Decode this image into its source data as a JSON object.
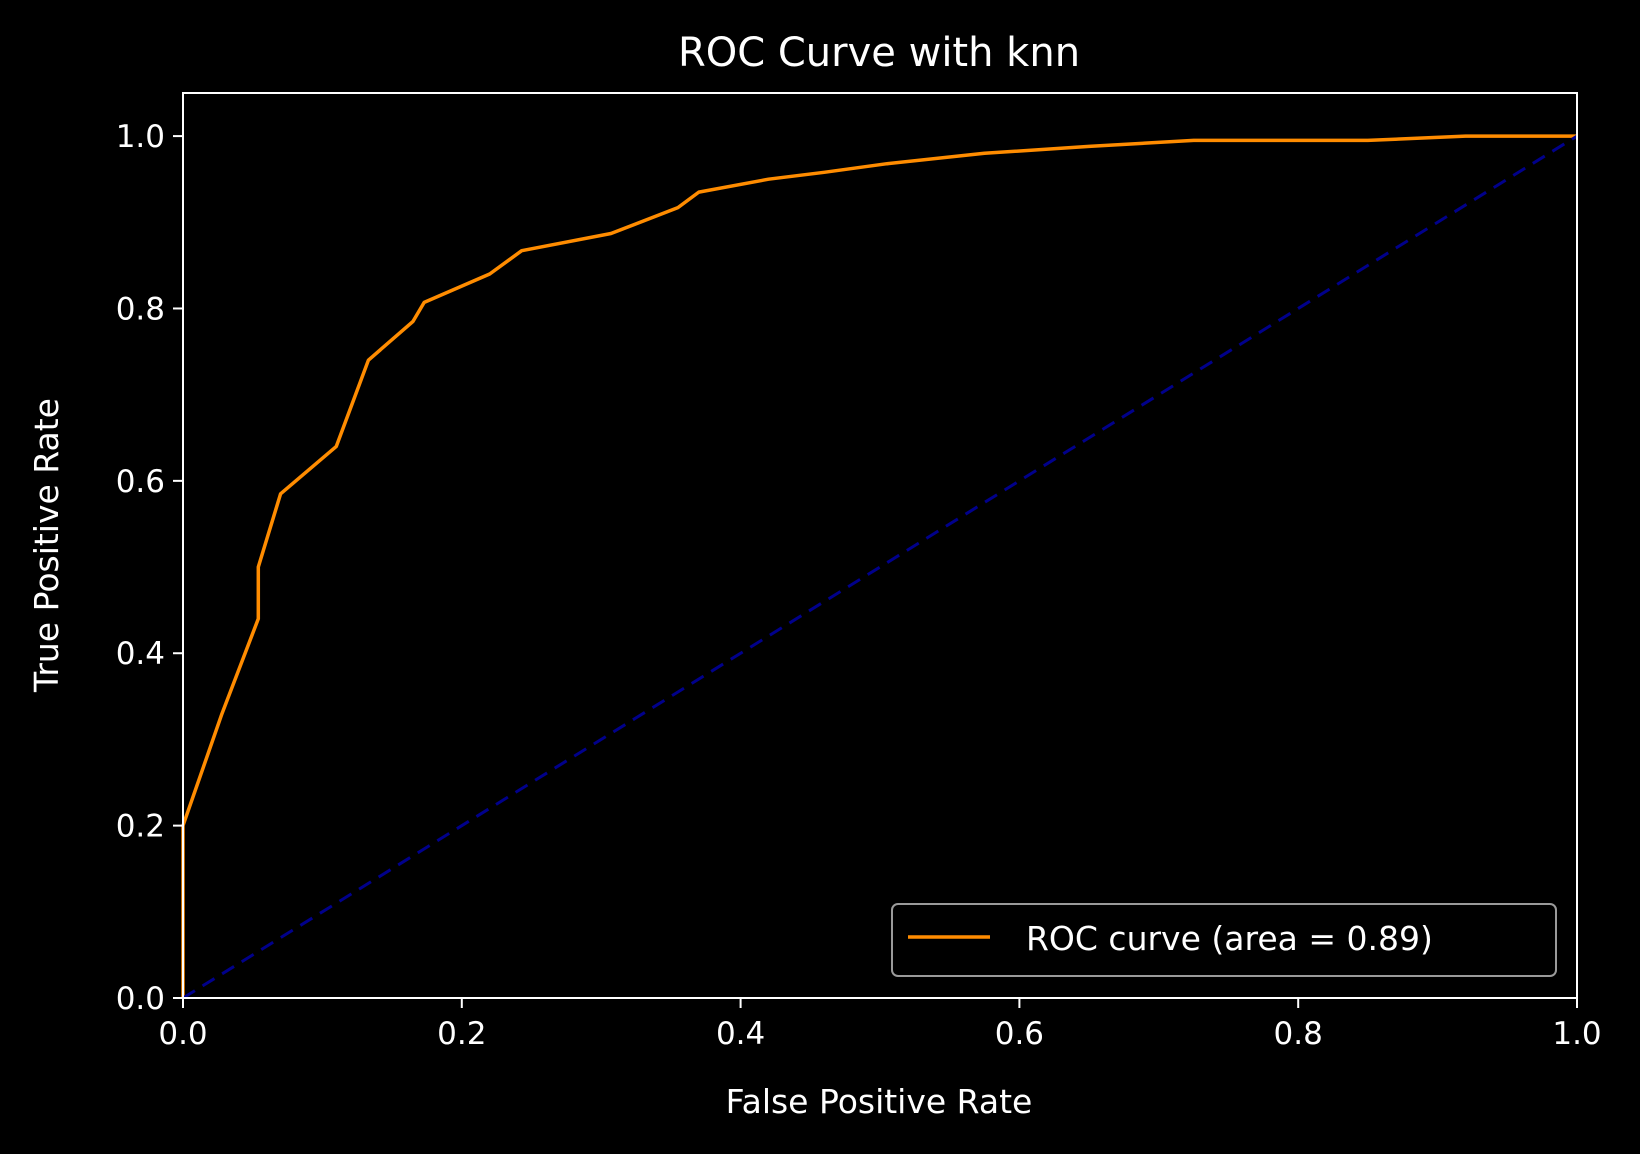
{
  "chart_data": {
    "type": "line",
    "title": "ROC Curve with knn",
    "xlabel": "False Positive Rate",
    "ylabel": "True Positive Rate",
    "xlim": [
      0.0,
      1.0
    ],
    "ylim": [
      0.0,
      1.05
    ],
    "xticks": [
      "0.0",
      "0.2",
      "0.4",
      "0.6",
      "0.8",
      "1.0"
    ],
    "yticks": [
      "0.0",
      "0.2",
      "0.4",
      "0.6",
      "0.8",
      "1.0"
    ],
    "grid": false,
    "legend": {
      "placement": "lower-right",
      "entries": [
        "ROC curve (area = 0.89)"
      ]
    },
    "series": [
      {
        "name": "ROC curve (area = 0.89)",
        "color": "#ff8c00",
        "style": "solid",
        "x": [
          0.0,
          0.0,
          0.028,
          0.054,
          0.054,
          0.07,
          0.11,
          0.133,
          0.165,
          0.173,
          0.22,
          0.243,
          0.307,
          0.355,
          0.37,
          0.42,
          0.46,
          0.505,
          0.575,
          0.65,
          0.725,
          0.85,
          0.92,
          1.0
        ],
        "y": [
          0.0,
          0.2,
          0.33,
          0.44,
          0.5,
          0.585,
          0.64,
          0.74,
          0.785,
          0.807,
          0.84,
          0.867,
          0.887,
          0.917,
          0.935,
          0.95,
          0.958,
          0.968,
          0.98,
          0.988,
          0.995,
          0.995,
          1.0,
          1.0
        ]
      },
      {
        "name": "",
        "color": "#00008b",
        "style": "dashed",
        "x": [
          0.0,
          1.0
        ],
        "y": [
          0.0,
          1.0
        ]
      }
    ]
  }
}
